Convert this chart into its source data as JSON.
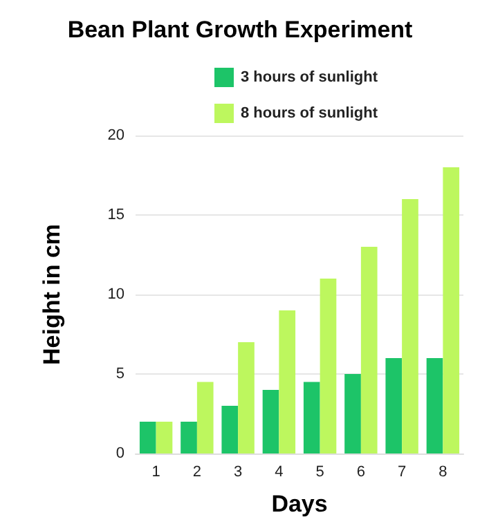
{
  "chart_data": {
    "type": "bar",
    "title": "Bean Plant Growth Experiment",
    "xlabel": "Days",
    "ylabel": "Height in cm",
    "categories": [
      "1",
      "2",
      "3",
      "4",
      "5",
      "6",
      "7",
      "8"
    ],
    "series": [
      {
        "name": "3 hours of sunlight",
        "color": "#1dc468",
        "values": [
          2,
          2,
          3,
          4,
          4.5,
          5,
          6,
          6
        ]
      },
      {
        "name": "8 hours of sunlight",
        "color": "#bdf75e",
        "values": [
          2,
          4.5,
          7,
          9,
          11,
          13,
          16,
          18
        ]
      }
    ],
    "ylim": [
      0,
      20
    ],
    "yticks": [
      0,
      5,
      10,
      15,
      20
    ],
    "grid": "y",
    "legend": "top"
  }
}
